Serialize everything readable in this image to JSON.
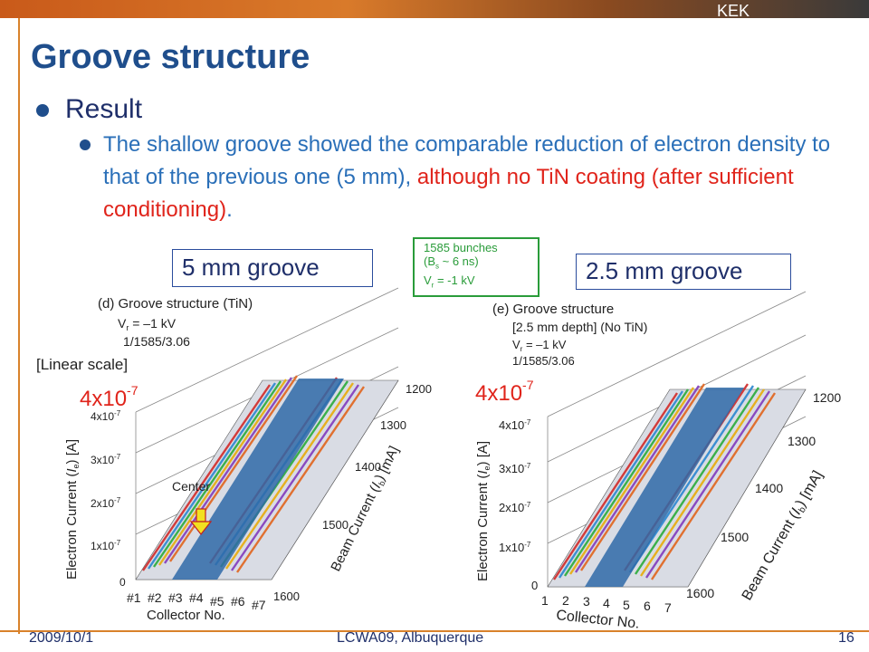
{
  "header": {
    "org": "KEK"
  },
  "slide": {
    "title": "Groove structure",
    "bullet_level1": "Result",
    "bullet_level2_blue": "The shallow groove showed the comparable reduction of electron density to that of the previous one (5 mm),",
    "bullet_level2_red": "although no TiN coating (after sufficient conditioning)",
    "bullet_level2_end": "."
  },
  "labels": {
    "left_box": "5 mm groove",
    "right_box": "2.5 mm groove",
    "green_line1": "1585 bunches",
    "green_line2": "(B",
    "green_line2_sub": "s",
    "green_line2_end": " ~ 6 ns)",
    "green_line3": "V",
    "green_line3_sub": "r",
    "green_line3_end": " = -1 kV",
    "linear_scale": "[Linear scale]",
    "big_value_left": "4x10",
    "big_value_left_exp": "-7",
    "big_value_right": "4x10",
    "big_value_right_exp": "-7"
  },
  "chart_data": [
    {
      "type": "area",
      "caption_lines": [
        "(d) Groove structure (TiN)",
        "V_r = –1 kV",
        "1/1585/3.06"
      ],
      "ylabel": "Electron Current (I_e) [A]",
      "xlabel": "Collector No.",
      "zlabel": "Beam Current (I_b) [mA]",
      "y_ticks": [
        "0",
        "1x10-7",
        "2x10-7",
        "3x10-7",
        "4x10-7"
      ],
      "x_ticks": [
        "#1",
        "#2",
        "#3",
        "#4",
        "#5",
        "#6",
        "#7"
      ],
      "z_ticks": [
        "1200",
        "1300",
        "1400",
        "1500",
        "1600"
      ],
      "annotation": "Center"
    },
    {
      "type": "area",
      "caption_lines": [
        "(e) Groove structure",
        "[2.5 mm depth] (No TiN)",
        "V_r = –1 kV",
        "1/1585/3.06"
      ],
      "ylabel": "Electron Current (I_e) [A]",
      "xlabel": "Collector No.",
      "zlabel": "Beam Current (I_b) [mA]",
      "y_ticks": [
        "0",
        "1x10-7",
        "2x10-7",
        "3x10-7",
        "4x10-7"
      ],
      "x_ticks": [
        "1",
        "2",
        "3",
        "4",
        "5",
        "6",
        "7"
      ],
      "z_ticks": [
        "1200",
        "1300",
        "1400",
        "1500",
        "1600"
      ]
    }
  ],
  "footer": {
    "date": "2009/10/1",
    "event": "LCWA09, Albuquerque",
    "page": "16"
  }
}
